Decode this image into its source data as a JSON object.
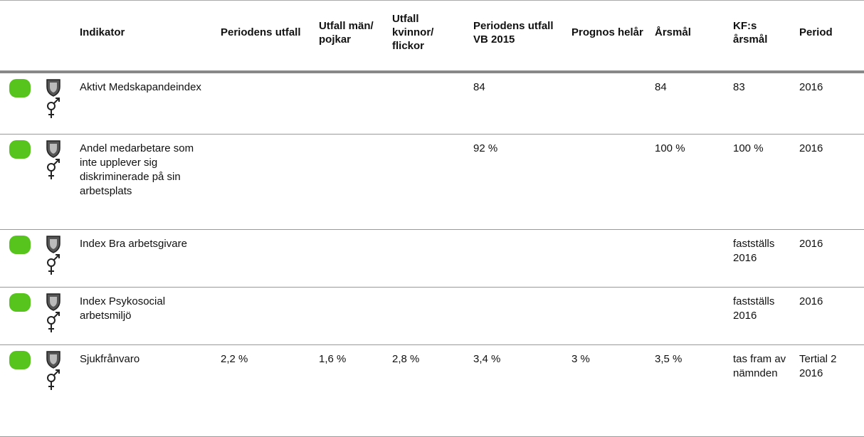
{
  "table": {
    "headers": [
      "Indikator",
      "Periodens utfall",
      "Utfall män/ pojkar",
      "Utfall kvinnor/ flickor",
      "Periodens utfall VB 2015",
      "Prognos helår",
      "Årsmål",
      "KF:s årsmål",
      "Period"
    ],
    "rows": [
      [
        "Aktivt Medskapandeindex",
        null,
        null,
        null,
        "84",
        null,
        "84",
        "83",
        "2016"
      ],
      [
        "Andel medarbetare som inte upplever sig diskriminerade på sin arbetsplats",
        null,
        null,
        null,
        "92 %",
        null,
        "100 %",
        "100 %",
        "2016"
      ],
      [
        "Index Bra arbetsgivare",
        null,
        null,
        null,
        null,
        null,
        null,
        "fastställs 2016",
        "2016"
      ],
      [
        "Index Psykosocial arbetsmiljö",
        null,
        null,
        null,
        null,
        null,
        null,
        "fastställs 2016",
        "2016"
      ],
      [
        "Sjukfrånvaro",
        "2,2 %",
        "1,6 %",
        "2,8 %",
        "3,4 %",
        "3 %",
        "3,5 %",
        "tas fram av nämnden",
        "Tertial 2 2016"
      ]
    ]
  }
}
